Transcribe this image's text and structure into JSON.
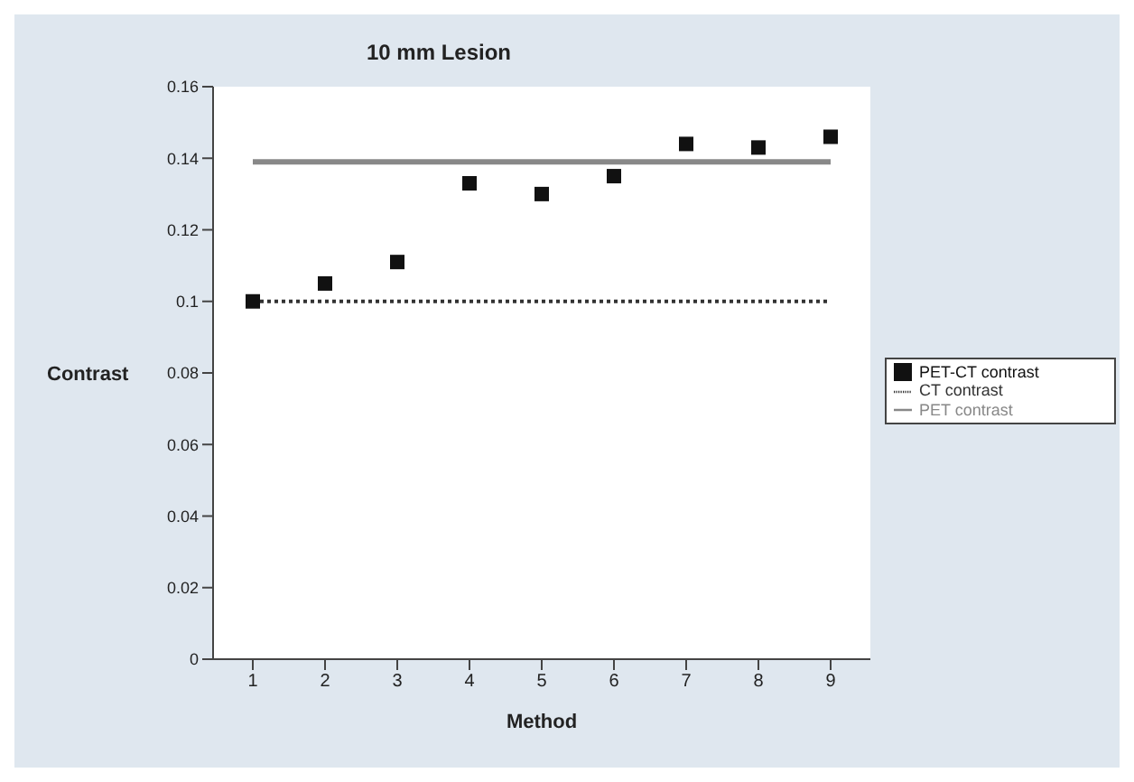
{
  "chart_data": {
    "type": "scatter",
    "title": "10 mm Lesion",
    "xlabel": "Method",
    "ylabel": "Contrast",
    "categories": [
      "1",
      "2",
      "3",
      "4",
      "5",
      "6",
      "7",
      "8",
      "9"
    ],
    "series": [
      {
        "name": "PET-CT contrast",
        "color": "#111111",
        "marker": "square",
        "values": [
          0.1,
          0.105,
          0.111,
          0.133,
          0.13,
          0.135,
          0.144,
          0.143,
          0.146
        ]
      },
      {
        "name": "CT contrast",
        "type": "line",
        "color": "#333333",
        "marker": "none",
        "line_style": "dotted",
        "values": [
          0.1,
          0.1,
          0.1,
          0.1,
          0.1,
          0.1,
          0.1,
          0.1,
          0.1
        ]
      },
      {
        "name": "PET contrast",
        "type": "line",
        "color": "#888888",
        "marker": "none",
        "line_style": "solid",
        "values": [
          0.139,
          0.139,
          0.139,
          0.139,
          0.139,
          0.139,
          0.139,
          0.139,
          0.139
        ]
      }
    ],
    "ylim": [
      0,
      0.16
    ],
    "yticks": [
      0,
      0.02,
      0.04,
      0.06,
      0.08,
      0.1,
      0.12,
      0.14,
      0.16
    ],
    "grid": false,
    "legend": "right"
  }
}
